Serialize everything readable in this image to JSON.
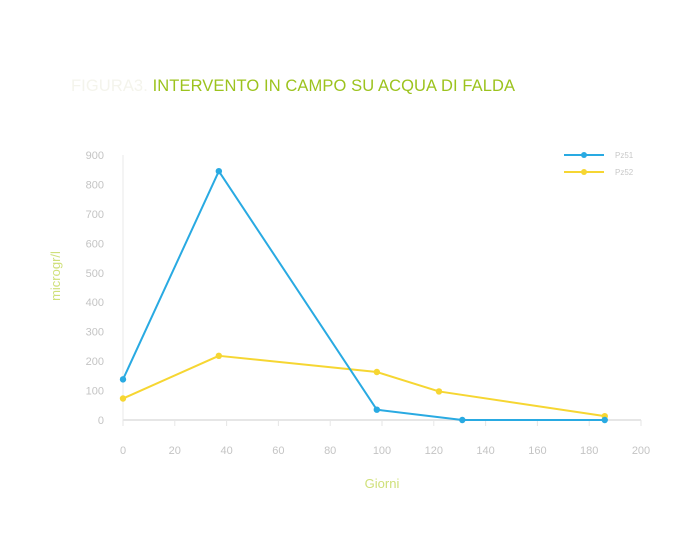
{
  "title": {
    "prefix": "FIGURA3.",
    "text": "INTERVENTO IN CAMPO SU ACQUA DI FALDA"
  },
  "chart_data": {
    "type": "line",
    "xlabel": "Giorni",
    "ylabel": "microgr/l",
    "xlim": [
      0,
      200
    ],
    "ylim": [
      0,
      900
    ],
    "xticks": [
      0,
      20,
      40,
      60,
      80,
      100,
      120,
      140,
      160,
      180,
      200
    ],
    "yticks": [
      0,
      100,
      200,
      300,
      400,
      500,
      600,
      700,
      800,
      900
    ],
    "grid": false,
    "legend": "top-right",
    "series": [
      {
        "name": "Pz51",
        "color": "#29aae2",
        "x": [
          0,
          37,
          98,
          131,
          186
        ],
        "y": [
          138,
          845,
          35,
          0,
          0
        ]
      },
      {
        "name": "Pz52",
        "color": "#f6d632",
        "x": [
          0,
          37,
          98,
          122,
          186
        ],
        "y": [
          73,
          218,
          163,
          97,
          13
        ]
      }
    ]
  }
}
